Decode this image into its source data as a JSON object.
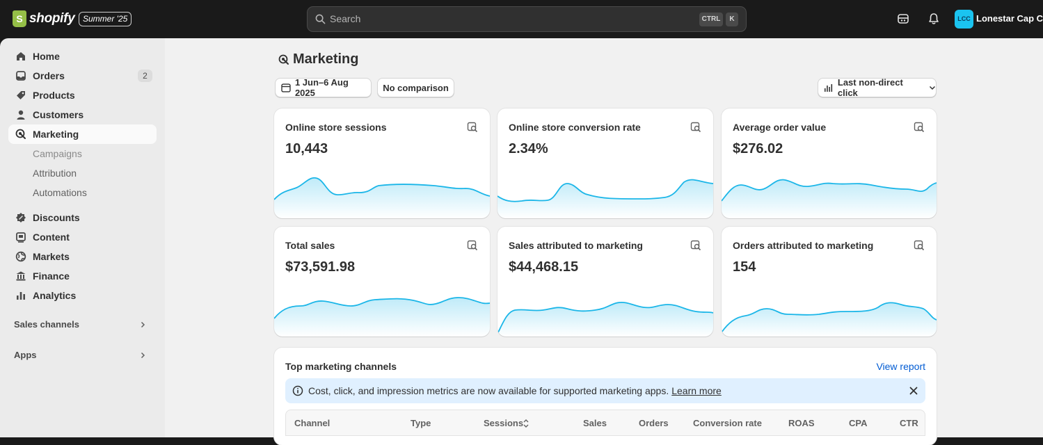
{
  "app": {
    "brand": "shopify",
    "edition": "Summer '25",
    "search_placeholder": "Search",
    "shortcut_ctrl": "CTRL",
    "shortcut_k": "K",
    "store_initials": "LCC",
    "store_name": "Lonestar Cap Co"
  },
  "sidebar": {
    "items": [
      {
        "label": "Home",
        "icon": "home-icon"
      },
      {
        "label": "Orders",
        "icon": "inbox-icon",
        "badge": "2"
      },
      {
        "label": "Products",
        "icon": "tag-icon"
      },
      {
        "label": "Customers",
        "icon": "person-icon"
      },
      {
        "label": "Marketing",
        "icon": "target-icon",
        "active": true
      }
    ],
    "subitems": [
      "Campaigns",
      "Attribution",
      "Automations"
    ],
    "items2": [
      {
        "label": "Discounts",
        "icon": "discount-icon"
      },
      {
        "label": "Content",
        "icon": "content-icon"
      },
      {
        "label": "Markets",
        "icon": "globe-icon"
      },
      {
        "label": "Finance",
        "icon": "bank-icon"
      },
      {
        "label": "Analytics",
        "icon": "bar-chart-icon"
      }
    ],
    "sales_channels": "Sales channels",
    "apps": "Apps"
  },
  "page": {
    "title": "Marketing",
    "date_range": "1 Jun–6 Aug 2025",
    "comparison": "No comparison",
    "attribution_model": "Last non-direct click"
  },
  "metrics": [
    {
      "title": "Online store sessions",
      "value": "10,443"
    },
    {
      "title": "Online store conversion rate",
      "value": "2.34%"
    },
    {
      "title": "Average order value",
      "value": "$276.02"
    },
    {
      "title": "Total sales",
      "value": "$73,591.98"
    },
    {
      "title": "Sales attributed to marketing",
      "value": "$44,468.15"
    },
    {
      "title": "Orders attributed to marketing",
      "value": "154"
    }
  ],
  "channels": {
    "title": "Top marketing channels",
    "view_report": "View report",
    "banner_text": "Cost, click, and impression metrics are now available for supported marketing apps.",
    "banner_link": "Learn more",
    "columns": [
      "Channel",
      "Type",
      "Sessions",
      "Sales",
      "Orders",
      "Conversion rate",
      "ROAS",
      "CPA",
      "CTR"
    ]
  },
  "colors": {
    "accent": "#1bb6e8",
    "link": "#005bd3",
    "topbar": "#1a1a1a"
  }
}
